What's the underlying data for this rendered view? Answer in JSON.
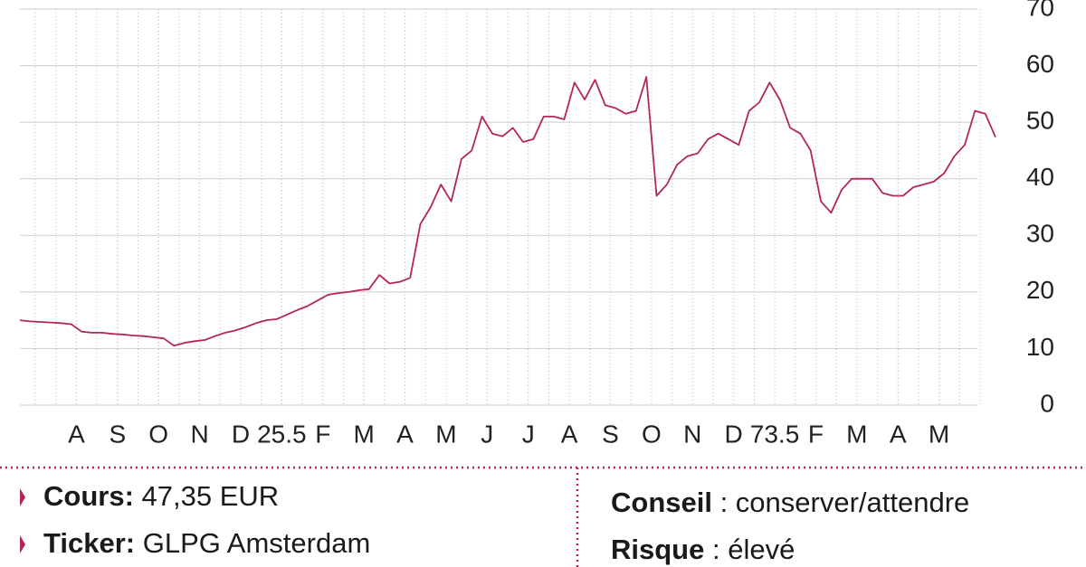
{
  "chart_data": {
    "type": "line",
    "series": [
      {
        "color": "#b3255c",
        "values": [
          15,
          14.8,
          14.7,
          14.6,
          14.5,
          14.3,
          13,
          12.8,
          12.8,
          12.6,
          12.5,
          12.3,
          12.2,
          12,
          11.8,
          10.5,
          11,
          11.3,
          11.5,
          12.2,
          12.8,
          13.2,
          13.8,
          14.5,
          15,
          15.2,
          16,
          16.8,
          17.5,
          18.5,
          19.5,
          19.8,
          20,
          20.3,
          20.5,
          23,
          21.5,
          21.8,
          22.5,
          32,
          35,
          39,
          36,
          43.5,
          45,
          51,
          48,
          47.5,
          49,
          46.5,
          47,
          51,
          51,
          50.5,
          57,
          54,
          57.5,
          53,
          52.5,
          51.5,
          52,
          58,
          37,
          39,
          42.5,
          44,
          44.5,
          47,
          48,
          47,
          46,
          52,
          53.5,
          57,
          54,
          49,
          48,
          45,
          36,
          34,
          38,
          40,
          40,
          40,
          37.5,
          37,
          37,
          38.5,
          39,
          39.5,
          41,
          44,
          46,
          52,
          51.5,
          47.35
        ]
      }
    ],
    "xlim": [
      0,
      95
    ],
    "xticks": [
      {
        "value": 5.5,
        "label": "A"
      },
      {
        "value": 9.5,
        "label": "S"
      },
      {
        "value": 13.5,
        "label": "O"
      },
      {
        "value": 17.5,
        "label": "N"
      },
      {
        "value": 21.5,
        "label": "D"
      },
      25.5,
      {
        "value": 29.5,
        "label": "F"
      },
      {
        "value": 33.5,
        "label": "M"
      },
      {
        "value": 37.5,
        "label": "A"
      },
      {
        "value": 41.5,
        "label": "M"
      },
      {
        "value": 45.5,
        "label": "J"
      },
      {
        "value": 49.5,
        "label": "J"
      },
      {
        "value": 53.5,
        "label": "A"
      },
      {
        "value": 57.5,
        "label": "S"
      },
      {
        "value": 61.5,
        "label": "O"
      },
      {
        "value": 65.5,
        "label": "N"
      },
      {
        "value": 69.5,
        "label": "D"
      },
      73.5,
      {
        "value": 77.5,
        "label": "F"
      },
      {
        "value": 81.5,
        "label": "M"
      },
      {
        "value": 85.5,
        "label": "A"
      },
      {
        "value": 89.5,
        "label": "M"
      }
    ],
    "ylim": [
      0,
      70
    ],
    "yticks": [
      0,
      10,
      20,
      30,
      40,
      50,
      60,
      70
    ],
    "grid": true
  },
  "info": {
    "cours": {
      "label": "Cours:",
      "value": "47,35 EUR"
    },
    "ticker": {
      "label": "Ticker:",
      "value": "GLPG Amsterdam"
    },
    "conseil": {
      "label": "Conseil",
      "value": " : conserver/attendre"
    },
    "risque": {
      "label": "Risque",
      "value": " : élevé"
    }
  }
}
